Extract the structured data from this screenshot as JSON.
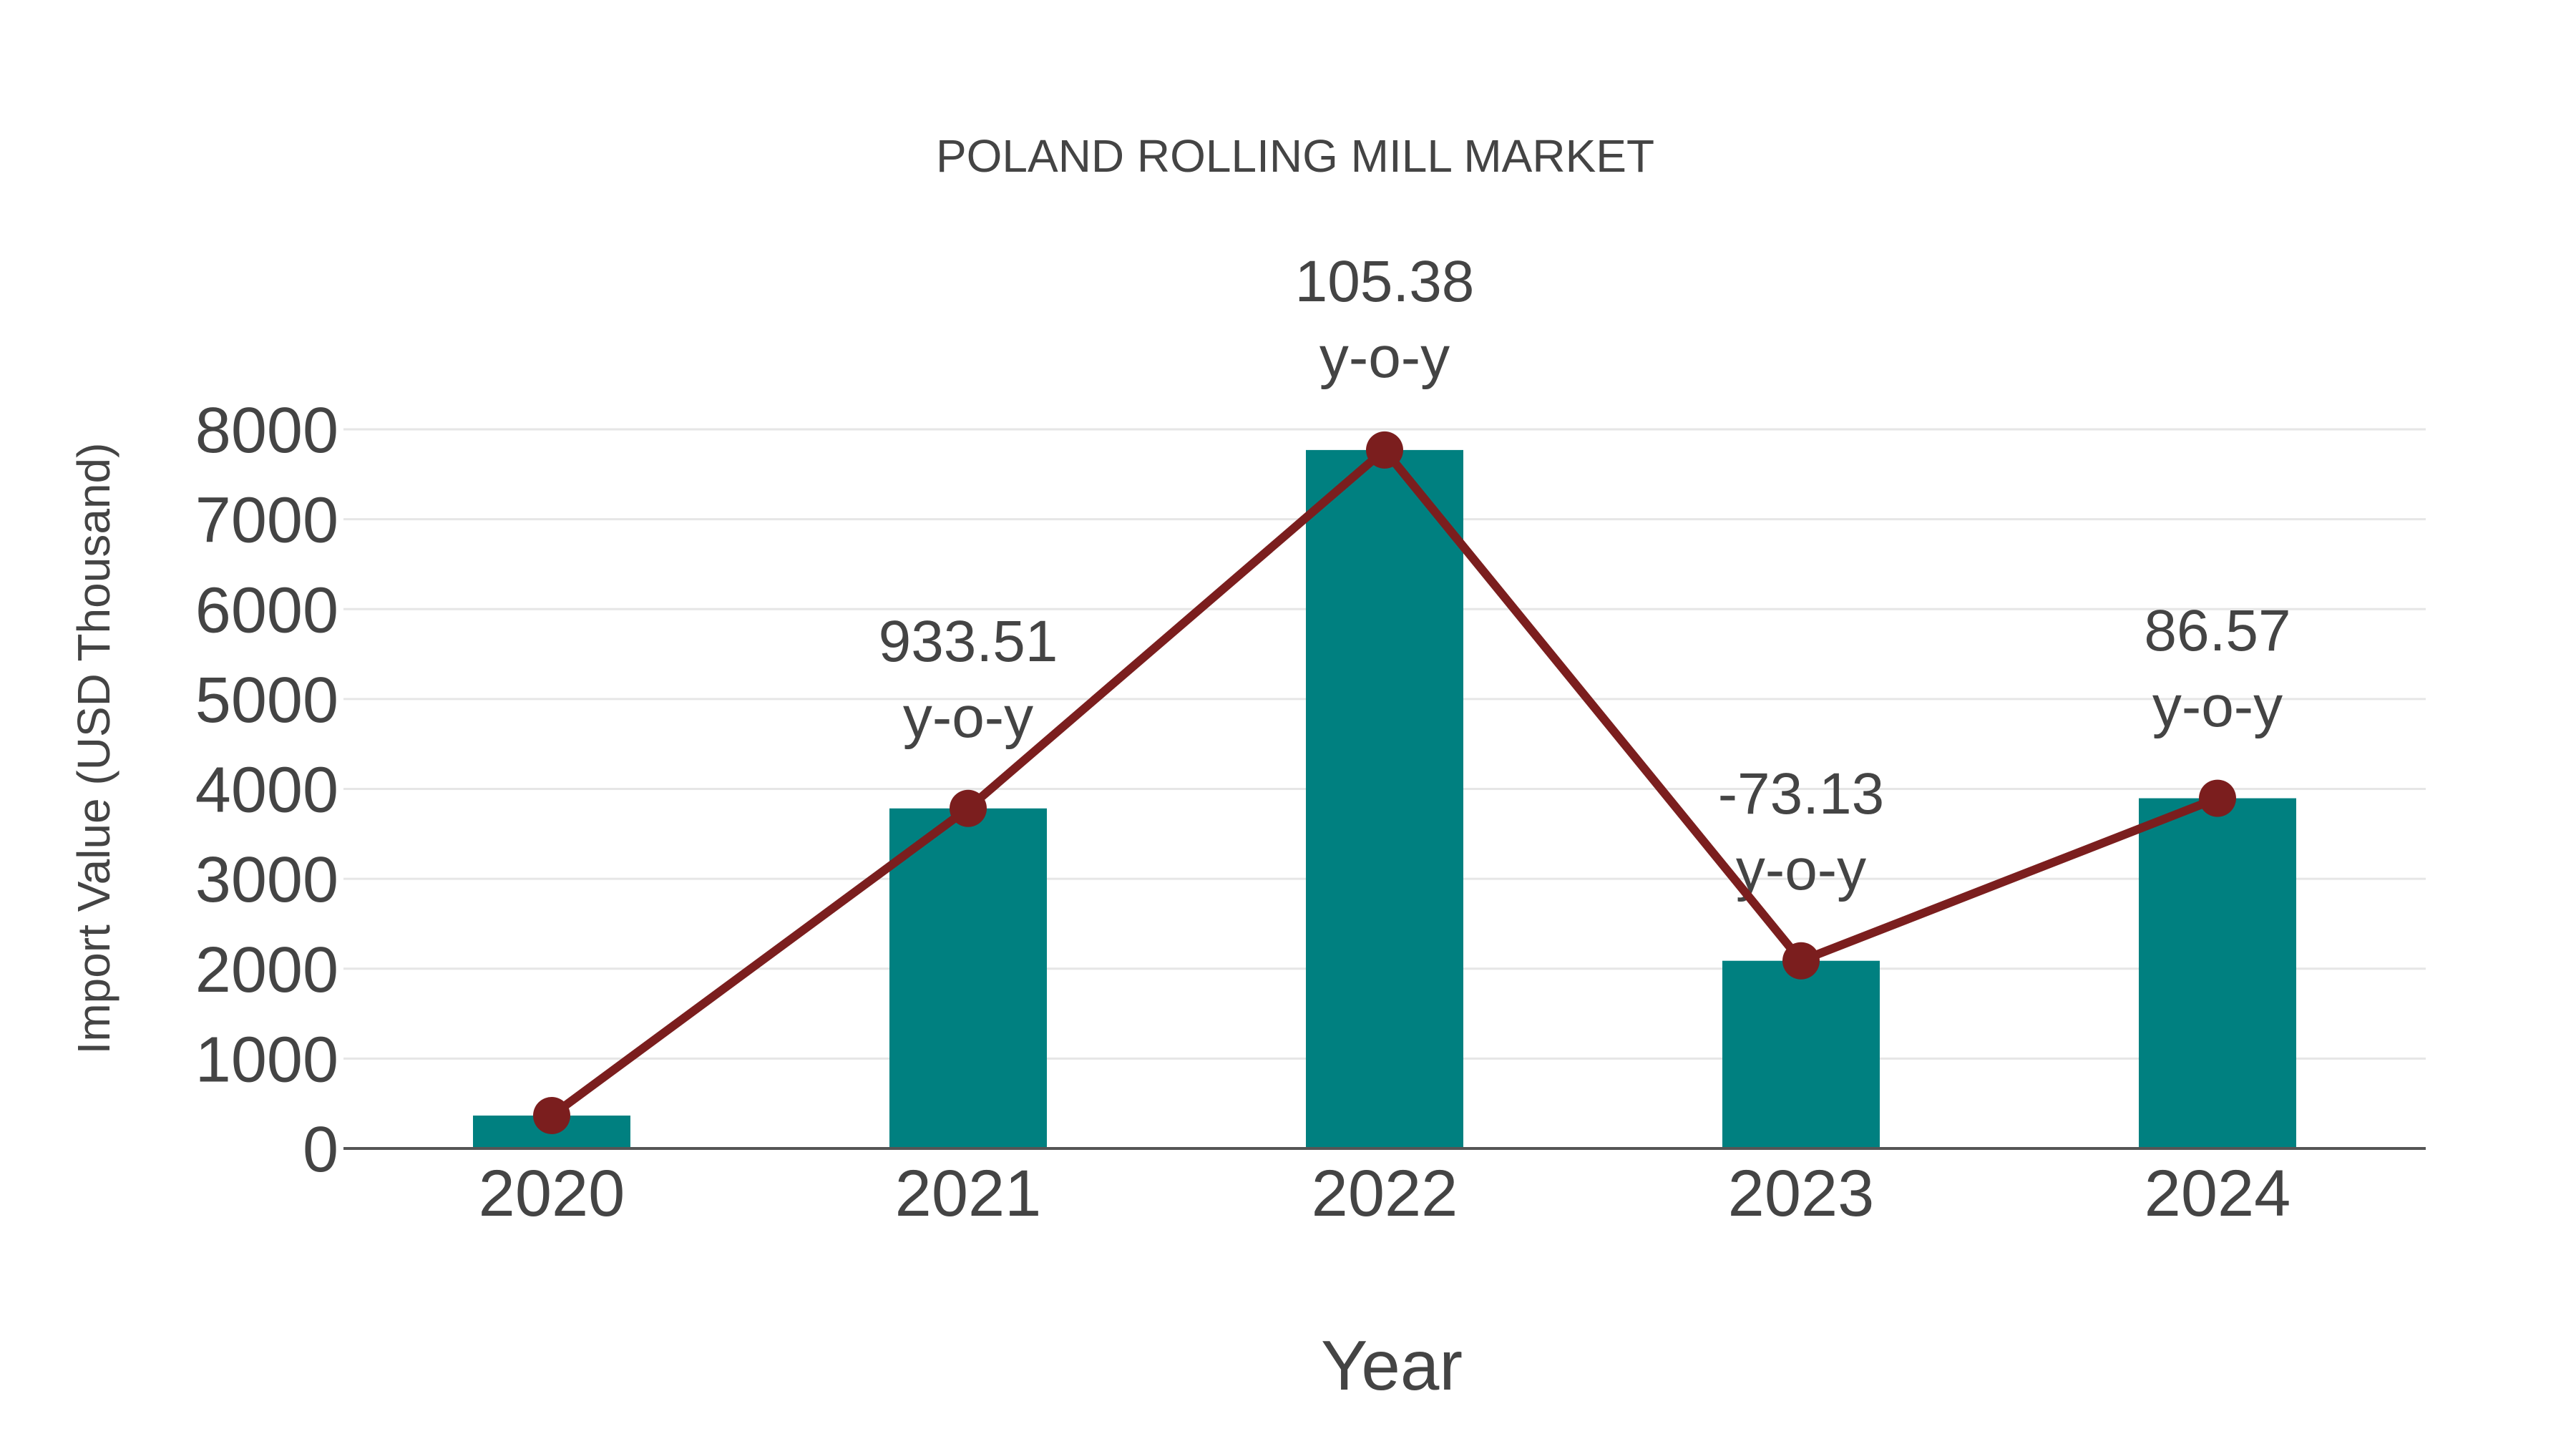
{
  "chart_data": {
    "type": "bar",
    "title": "POLAND ROLLING MILL MARKET",
    "xlabel": "Year",
    "ylabel": "Import Value (USD Thousand)",
    "categories": [
      "2020",
      "2021",
      "2022",
      "2023",
      "2024"
    ],
    "series": [
      {
        "name": "Import Value",
        "type": "bar",
        "color": "#008080",
        "values": [
          366,
          3783,
          7770,
          2088,
          3896
        ]
      },
      {
        "name": "Import Value (trend)",
        "type": "line",
        "color": "#7b1e1e",
        "values": [
          366,
          3783,
          7770,
          2088,
          3896
        ]
      }
    ],
    "annotations": [
      {
        "category": "2021",
        "value": "933.51",
        "suffix": "y-o-y"
      },
      {
        "category": "2022",
        "value": "105.38",
        "suffix": "y-o-y"
      },
      {
        "category": "2023",
        "value": "-73.13",
        "suffix": "y-o-y"
      },
      {
        "category": "2024",
        "value": "86.57",
        "suffix": "y-o-y"
      }
    ],
    "yticks": [
      0,
      1000,
      2000,
      3000,
      4000,
      5000,
      6000,
      7000,
      8000
    ],
    "ylim": [
      0,
      8000
    ],
    "grid": true,
    "legend": false
  },
  "colors": {
    "bar": "#008080",
    "line": "#7b1e1e",
    "text": "#444444",
    "grid": "#e6e6e6",
    "axis": "#555555"
  }
}
